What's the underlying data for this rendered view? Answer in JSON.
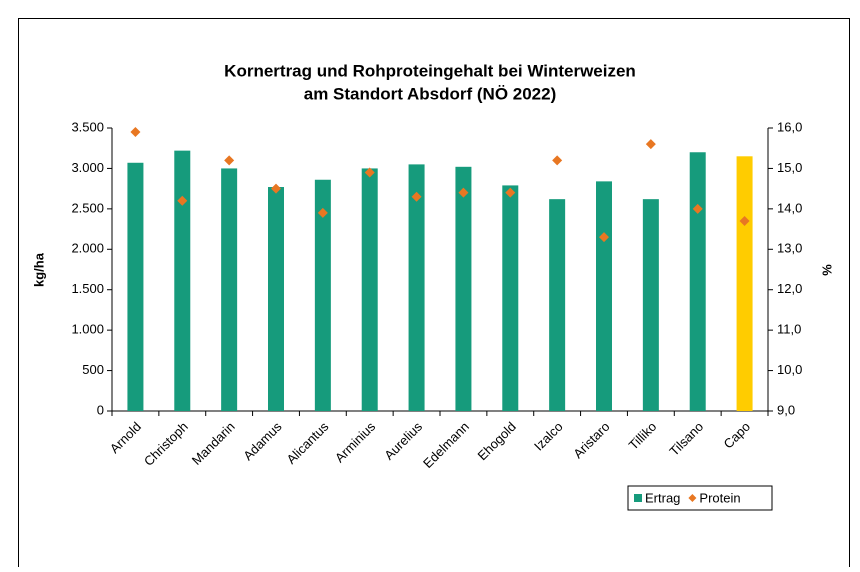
{
  "chart_data": {
    "type": "bar",
    "title": [
      "Kornertrag und Rohproteingehalt bei Winterweizen",
      "am Standort Absdorf (NÖ 2022)"
    ],
    "categories": [
      "Arnold",
      "Christoph",
      "Mandarin",
      "Adamus",
      "Alicantus",
      "Arminius",
      "Aurelius",
      "Edelmann",
      "Ehogold",
      "Izalco",
      "Aristaro",
      "Tilliko",
      "Tilsano",
      "Capo"
    ],
    "series": [
      {
        "name": "Ertrag",
        "type": "bar",
        "color": "#169b7c",
        "colors": [
          "#169b7c",
          "#169b7c",
          "#169b7c",
          "#169b7c",
          "#169b7c",
          "#169b7c",
          "#169b7c",
          "#169b7c",
          "#169b7c",
          "#169b7c",
          "#169b7c",
          "#169b7c",
          "#169b7c",
          "#ffcc00"
        ],
        "values": [
          3070,
          3220,
          3000,
          2770,
          2860,
          3000,
          3050,
          3020,
          2790,
          2620,
          2840,
          2620,
          3200,
          3150
        ]
      },
      {
        "name": "Protein",
        "type": "scatter",
        "axis": "y2",
        "color": "#e87722",
        "values": [
          15.9,
          14.2,
          15.2,
          14.5,
          13.9,
          14.9,
          14.3,
          14.4,
          14.4,
          15.2,
          13.3,
          15.6,
          14.0,
          13.7
        ]
      }
    ],
    "ylabel": "kg/ha",
    "y2label": "%",
    "ylim": [
      0,
      3500
    ],
    "yticks": [
      0,
      500,
      {
        "value": 1000,
        "label": "1.000"
      },
      {
        "value": 1500,
        "label": "1.500"
      },
      {
        "value": 2000,
        "label": "2.000"
      },
      {
        "value": 2500,
        "label": "2.500"
      },
      {
        "value": 3000,
        "label": "3.000"
      },
      {
        "value": 3500,
        "label": "3.500"
      }
    ],
    "y2lim": [
      9,
      16
    ],
    "y2ticks": [
      {
        "value": 9,
        "label": "9,0"
      },
      {
        "value": 10,
        "label": "10,0"
      },
      {
        "value": 11,
        "label": "11,0"
      },
      {
        "value": 12,
        "label": "12,0"
      },
      {
        "value": 13,
        "label": "13,0"
      },
      {
        "value": 14,
        "label": "14,0"
      },
      {
        "value": 15,
        "label": "15,0"
      },
      {
        "value": 16,
        "label": "16,0"
      }
    ],
    "grid": false,
    "legend": "bottom-right"
  }
}
